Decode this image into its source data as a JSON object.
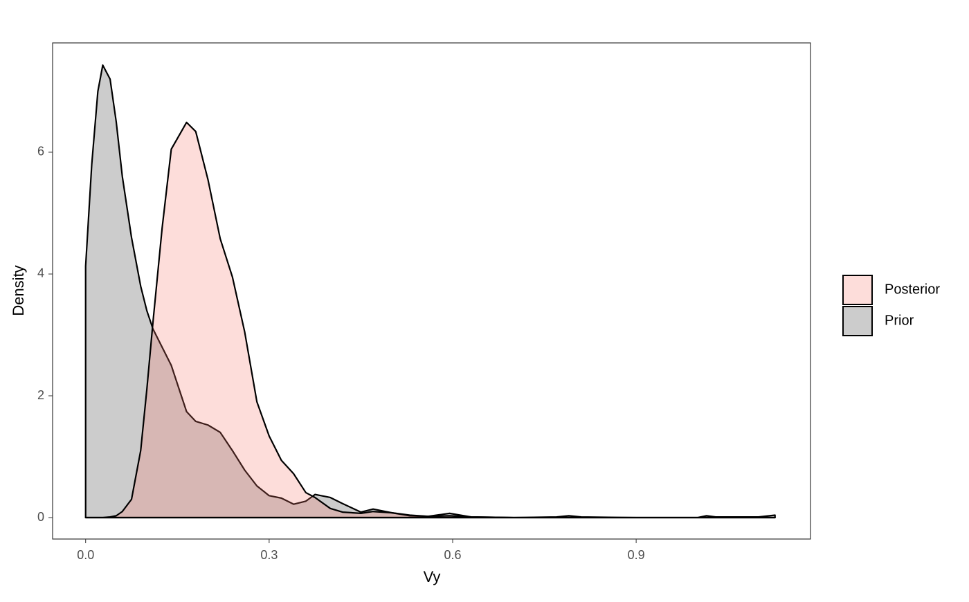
{
  "chart_data": {
    "type": "area",
    "x_label": "Vy",
    "y_label": "Density",
    "x": [
      0,
      0.01,
      0.02,
      0.028,
      0.04,
      0.05,
      0.06,
      0.075,
      0.09,
      0.1,
      0.11,
      0.125,
      0.14,
      0.165,
      0.18,
      0.2,
      0.22,
      0.24,
      0.26,
      0.28,
      0.3,
      0.32,
      0.34,
      0.36,
      0.375,
      0.4,
      0.42,
      0.45,
      0.47,
      0.5,
      0.53,
      0.56,
      0.595,
      0.63,
      0.7,
      0.77,
      0.79,
      0.81,
      0.9,
      1.0,
      1.015,
      1.03,
      1.1,
      1.127
    ],
    "series": [
      {
        "name": "Prior",
        "color": "#cccccc",
        "opacity": 1,
        "values": [
          4.13,
          5.8,
          7.0,
          7.43,
          7.2,
          6.5,
          5.6,
          4.6,
          3.8,
          3.4,
          3.1,
          2.8,
          2.5,
          1.74,
          1.58,
          1.52,
          1.4,
          1.1,
          0.78,
          0.52,
          0.36,
          0.32,
          0.22,
          0.27,
          0.38,
          0.33,
          0.23,
          0.09,
          0.14,
          0.08,
          0.03,
          0.02,
          0.07,
          0.01,
          0,
          0.01,
          0.03,
          0.01,
          0,
          0,
          0.03,
          0.01,
          0.01,
          0.04
        ]
      },
      {
        "name": "Posterior",
        "color": "#f8766d",
        "opacity": 0.25,
        "values": [
          0,
          0,
          0,
          0,
          0.01,
          0.03,
          0.1,
          0.3,
          1.1,
          2.1,
          3.2,
          4.75,
          6.05,
          6.49,
          6.34,
          5.55,
          4.58,
          3.95,
          3.05,
          1.9,
          1.34,
          0.94,
          0.72,
          0.41,
          0.33,
          0.15,
          0.09,
          0.07,
          0.1,
          0.08,
          0.04,
          0.02,
          0.03,
          0.01,
          0,
          0,
          0,
          0,
          0,
          0,
          0,
          0,
          0,
          0
        ]
      }
    ],
    "xlim": [
      -0.054,
      1.185
    ],
    "ylim": [
      -0.352,
      7.795
    ],
    "xticks": [
      {
        "value": 0,
        "label": "0.0"
      },
      0.3,
      0.6,
      0.9
    ],
    "yticks": [
      0,
      2,
      4,
      6
    ],
    "grid": false,
    "legend": "right"
  }
}
